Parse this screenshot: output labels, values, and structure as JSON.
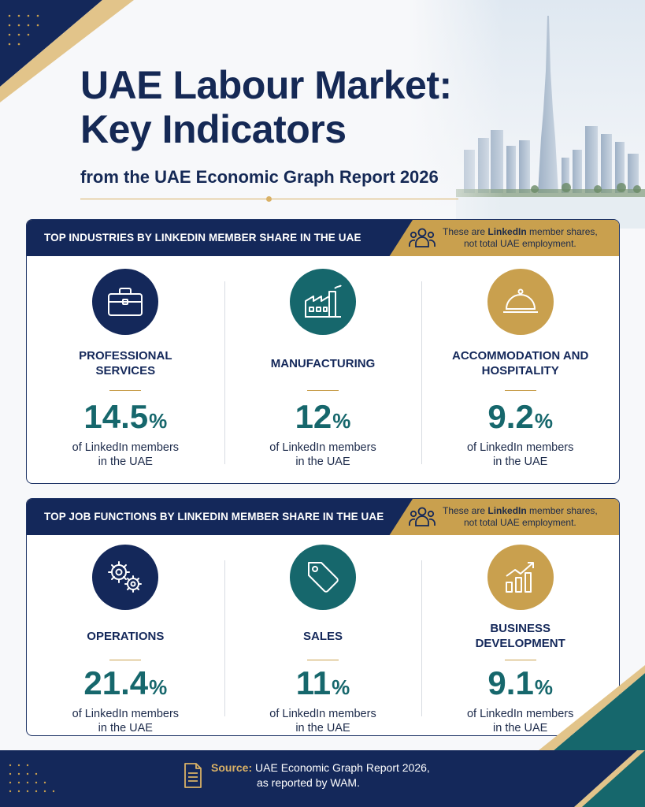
{
  "colors": {
    "navy": "#14285a",
    "teal": "#16676c",
    "gold": "#c9a04e"
  },
  "header": {
    "title_line1": "UAE Labour Market:",
    "title_line2": "Key Indicators",
    "subtitle": "from the UAE Economic Graph Report 2026"
  },
  "industries": {
    "heading": "TOP INDUSTRIES BY LINKEDIN MEMBER SHARE IN THE UAE",
    "note_pre": "These are ",
    "note_bold": "LinkedIn",
    "note_post": " member shares,",
    "note_line2": "not total UAE employment.",
    "items": [
      {
        "icon": "briefcase-icon",
        "label": "PROFESSIONAL SERVICES",
        "value": "14.5",
        "unit": "%",
        "caption_line1": "of LinkedIn members",
        "caption_line2": "in the UAE"
      },
      {
        "icon": "factory-icon",
        "label": "MANUFACTURING",
        "value": "12",
        "unit": "%",
        "caption_line1": "of LinkedIn members",
        "caption_line2": "in the UAE"
      },
      {
        "icon": "cloche-icon",
        "label": "ACCOMMODATION AND HOSPITALITY",
        "value": "9.2",
        "unit": "%",
        "caption_line1": "of LinkedIn members",
        "caption_line2": "in the UAE"
      }
    ]
  },
  "functions": {
    "heading": "TOP JOB FUNCTIONS BY LINKEDIN MEMBER SHARE IN THE UAE",
    "note_pre": "These are ",
    "note_bold": "LinkedIn",
    "note_post": " member shares,",
    "note_line2": "not total UAE employment.",
    "items": [
      {
        "icon": "gears-icon",
        "label": "OPERATIONS",
        "value": "21.4",
        "unit": "%",
        "caption_line1": "of LinkedIn members",
        "caption_line2": "in the UAE"
      },
      {
        "icon": "price-tag-icon",
        "label": "SALES",
        "value": "11",
        "unit": "%",
        "caption_line1": "of LinkedIn members",
        "caption_line2": "in the UAE"
      },
      {
        "icon": "growth-chart-icon",
        "label": "BUSINESS DEVELOPMENT",
        "value": "9.1",
        "unit": "%",
        "caption_line1": "of LinkedIn members",
        "caption_line2": "in the UAE"
      }
    ]
  },
  "footer": {
    "source_label": "Source:",
    "source_line1": " UAE Economic Graph Report 2026,",
    "source_line2": "as reported by WAM."
  }
}
